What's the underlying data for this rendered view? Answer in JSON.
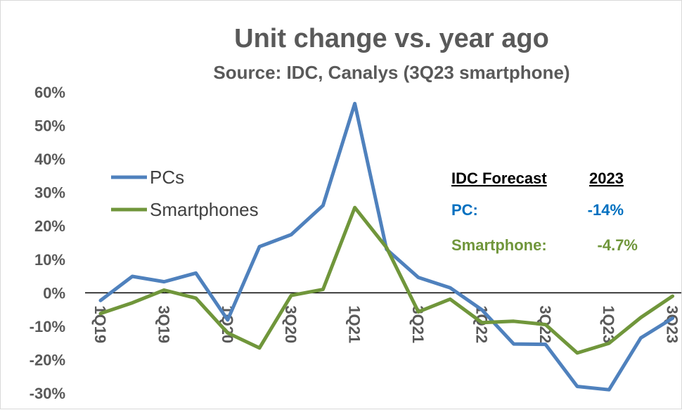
{
  "chart_data": {
    "type": "line",
    "title": "Unit change vs. year ago",
    "subtitle": "Source: IDC, Canalys (3Q23 smartphone)",
    "categories": [
      "1Q19",
      "2Q19",
      "3Q19",
      "4Q19",
      "1Q20",
      "2Q20",
      "3Q20",
      "4Q20",
      "1Q21",
      "2Q21",
      "3Q21",
      "4Q21",
      "1Q22",
      "2Q22",
      "3Q22",
      "4Q22",
      "1Q23",
      "2Q23",
      "3Q23"
    ],
    "x_tick_labels": [
      "1Q19",
      "3Q19",
      "1Q20",
      "3Q20",
      "1Q21",
      "3Q21",
      "1Q22",
      "3Q22",
      "1Q23",
      "3Q23"
    ],
    "y_tick_labels": [
      "60%",
      "50%",
      "40%",
      "30%",
      "20%",
      "10%",
      "0%",
      "-10%",
      "-20%",
      "-30%"
    ],
    "ylim": [
      -30,
      60
    ],
    "y_step": 10,
    "grid": false,
    "series": [
      {
        "name": "PCs",
        "color": "#4f81bd",
        "values": [
          -2.3,
          4.9,
          3.3,
          5.9,
          -8.1,
          13.8,
          17.4,
          26.1,
          56.6,
          13.0,
          4.6,
          1.5,
          -5.1,
          -15.3,
          -15.4,
          -28.0,
          -29.0,
          -13.5,
          -7.6
        ]
      },
      {
        "name": "Smartphones",
        "color": "#70963b",
        "values": [
          -6.2,
          -3.0,
          0.8,
          -1.6,
          -12.0,
          -16.5,
          -0.8,
          1.0,
          25.5,
          13.5,
          -5.7,
          -1.9,
          -8.9,
          -8.5,
          -9.5,
          -18.0,
          -15.1,
          -7.4,
          -1.0
        ]
      }
    ],
    "legend_position": "left",
    "annotation": {
      "header_label": "IDC Forecast",
      "header_year": "2023",
      "rows": [
        {
          "label": "PC:",
          "value": "-14%",
          "color": "#0070c0"
        },
        {
          "label": "Smartphone:",
          "value": "-4.7%",
          "color": "#70963b"
        }
      ]
    }
  }
}
